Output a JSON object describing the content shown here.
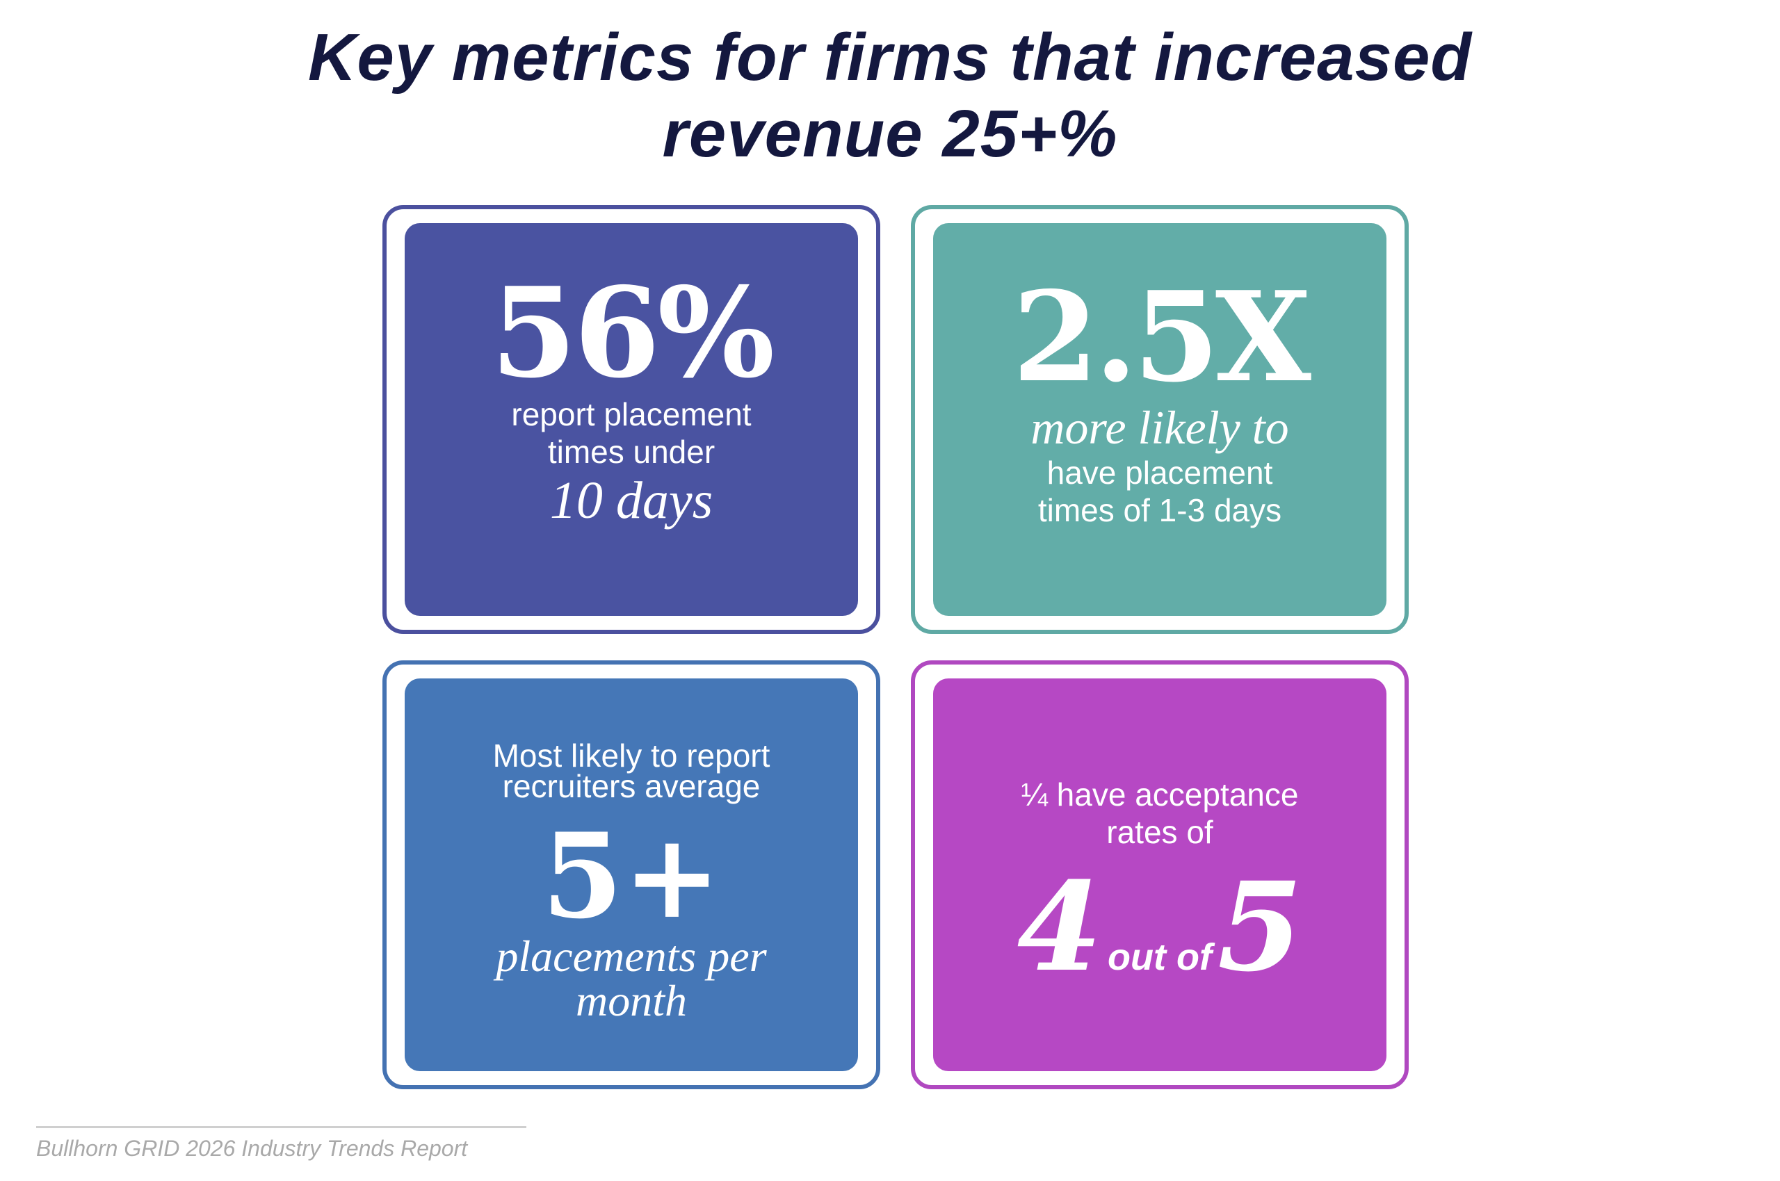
{
  "title": {
    "line1": "Key metrics for firms that increased",
    "line2": "revenue 25+%"
  },
  "cards": [
    {
      "big": "56%",
      "text_line1": "report placement",
      "text_line2": "times under",
      "emphasis": "10 days",
      "color": "#4a53a1"
    },
    {
      "big": "2.5X",
      "emphasis": "more likely to",
      "text_line1": "have placement",
      "text_line2": "times of 1-3 days",
      "color": "#62ada8"
    },
    {
      "lead_line1": "Most likely to report",
      "lead_line2": "recruiters average",
      "big": "5+",
      "emphasis_line1": "placements per",
      "emphasis_line2": "month",
      "color": "#4577b7"
    },
    {
      "lead_line1": "¼ have acceptance",
      "lead_line2": "rates of",
      "num1": "4",
      "connector": "out of",
      "num2": "5",
      "color": "#b648c4"
    }
  ],
  "source": "Bullhorn GRID 2026 Industry Trends Report"
}
